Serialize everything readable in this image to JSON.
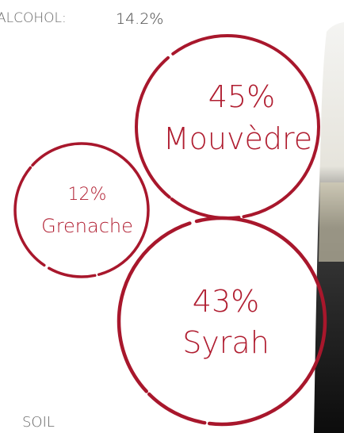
{
  "alcohol": {
    "label": "ALCOHOL:",
    "value": "14.2%"
  },
  "blends": [
    {
      "percent": "45%",
      "name": "Mouvèdre"
    },
    {
      "percent": "12%",
      "name": "Grenache"
    },
    {
      "percent": "43%",
      "name": "Syrah"
    }
  ],
  "soil": {
    "label": "SOIL"
  }
}
